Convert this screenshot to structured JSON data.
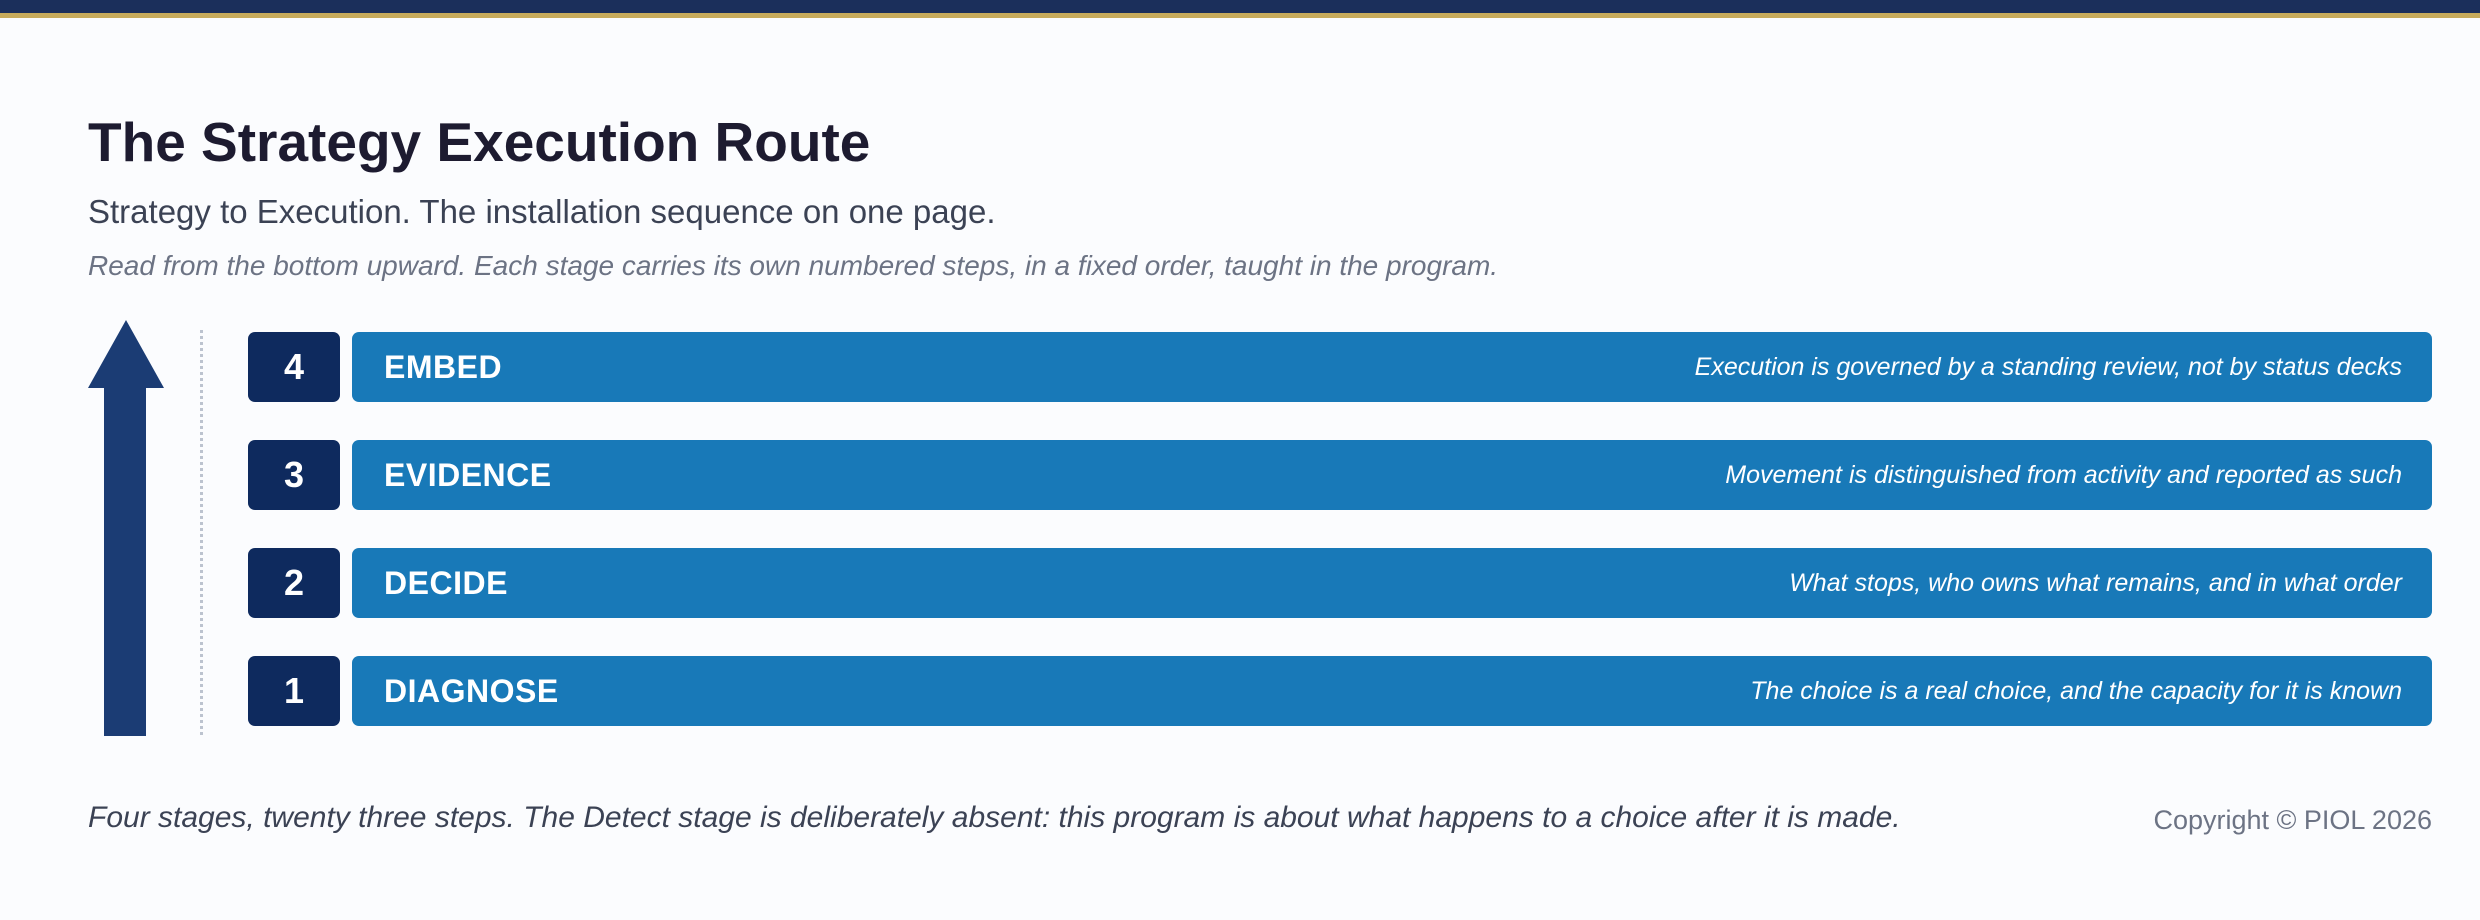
{
  "header": {
    "title": "The Strategy Execution Route",
    "subtitle": "Strategy to Execution. The installation sequence on one page.",
    "instruction": "Read from the bottom upward. Each stage carries its own numbered steps, in a fixed order, taught in the program."
  },
  "stages": [
    {
      "number": "4",
      "name": "EMBED",
      "description": "Execution is governed by a standing review, not by status decks"
    },
    {
      "number": "3",
      "name": "EVIDENCE",
      "description": "Movement is distinguished from activity and reported as such"
    },
    {
      "number": "2",
      "name": "DECIDE",
      "description": "What stops, who owns what remains, and in what order"
    },
    {
      "number": "1",
      "name": "DIAGNOSE",
      "description": "The choice is a real choice, and the capacity for it is known"
    }
  ],
  "footer": {
    "note": "Four stages, twenty three steps. The Detect stage is deliberately absent: this program is about what happens to a choice after it is made.",
    "copyright": "Copyright © PIOL 2026"
  },
  "colors": {
    "navy": "#0e2a5e",
    "stage_blue": "#1879b8",
    "arrow": "#1b3c74",
    "gold": "#c7ab5c"
  },
  "icons": {
    "direction": "up-arrow-icon"
  }
}
